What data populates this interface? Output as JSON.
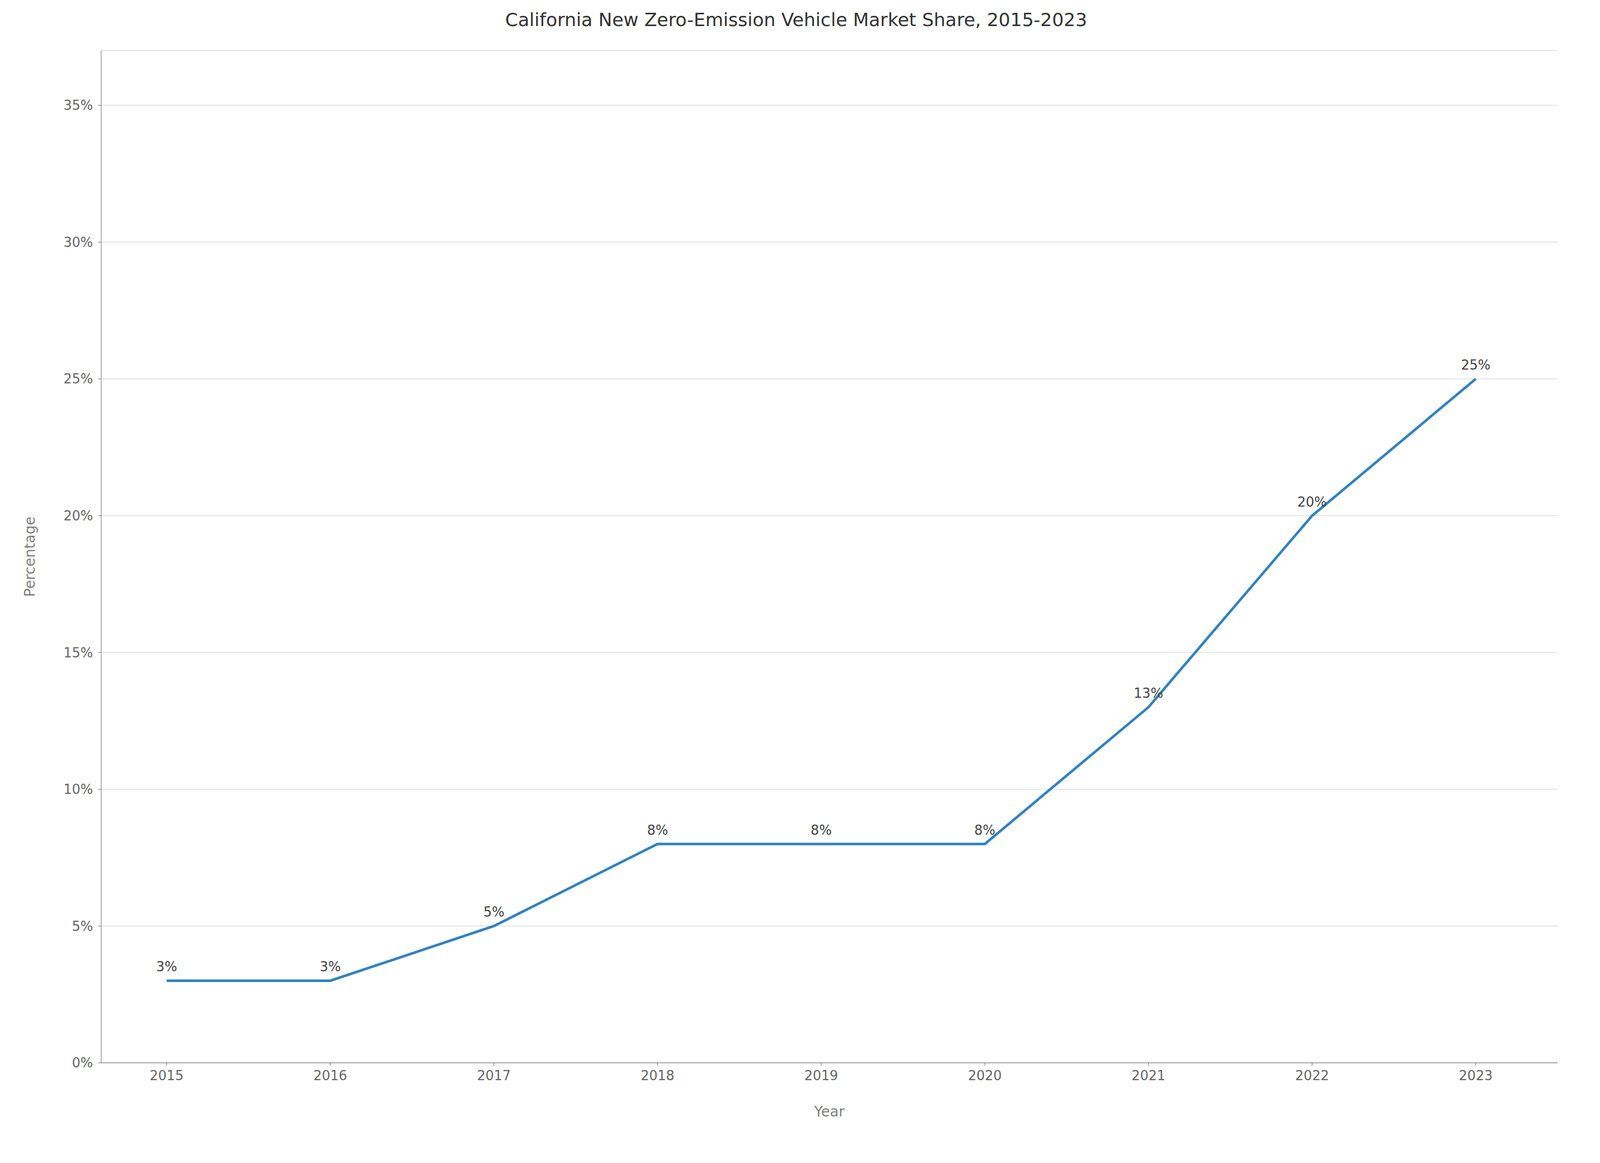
{
  "chart_data": {
    "type": "line",
    "title": "California New Zero-Emission Vehicle Market Share, 2015-2023",
    "x_label": "Year",
    "y_label": "Percentage",
    "x": [
      2015,
      2016,
      2017,
      2018,
      2019,
      2020,
      2021,
      2022,
      2023
    ],
    "values": [
      3,
      3,
      5,
      8,
      8,
      8,
      13,
      20,
      25
    ],
    "data_labels": true,
    "value_labels": [
      "3%",
      "3%",
      "5%",
      "8%",
      "8%",
      "8%",
      "13%",
      "20%",
      "25%"
    ],
    "xlim": [
      2014.6,
      2023.5
    ],
    "xticks": [
      2015,
      2016,
      2017,
      2018,
      2019,
      2020,
      2021,
      2022,
      2023
    ],
    "ylim": [
      0,
      37
    ],
    "yticks": [
      {
        "value": 0,
        "label": "0%"
      },
      {
        "value": 5,
        "label": "5%"
      },
      {
        "value": 10,
        "label": "10%"
      },
      {
        "value": 15,
        "label": "15%"
      },
      {
        "value": 20,
        "label": "20%"
      },
      {
        "value": 25,
        "label": "25%"
      },
      {
        "value": 30,
        "label": "30%"
      },
      {
        "value": 35,
        "label": "35%"
      }
    ],
    "grid": true
  }
}
